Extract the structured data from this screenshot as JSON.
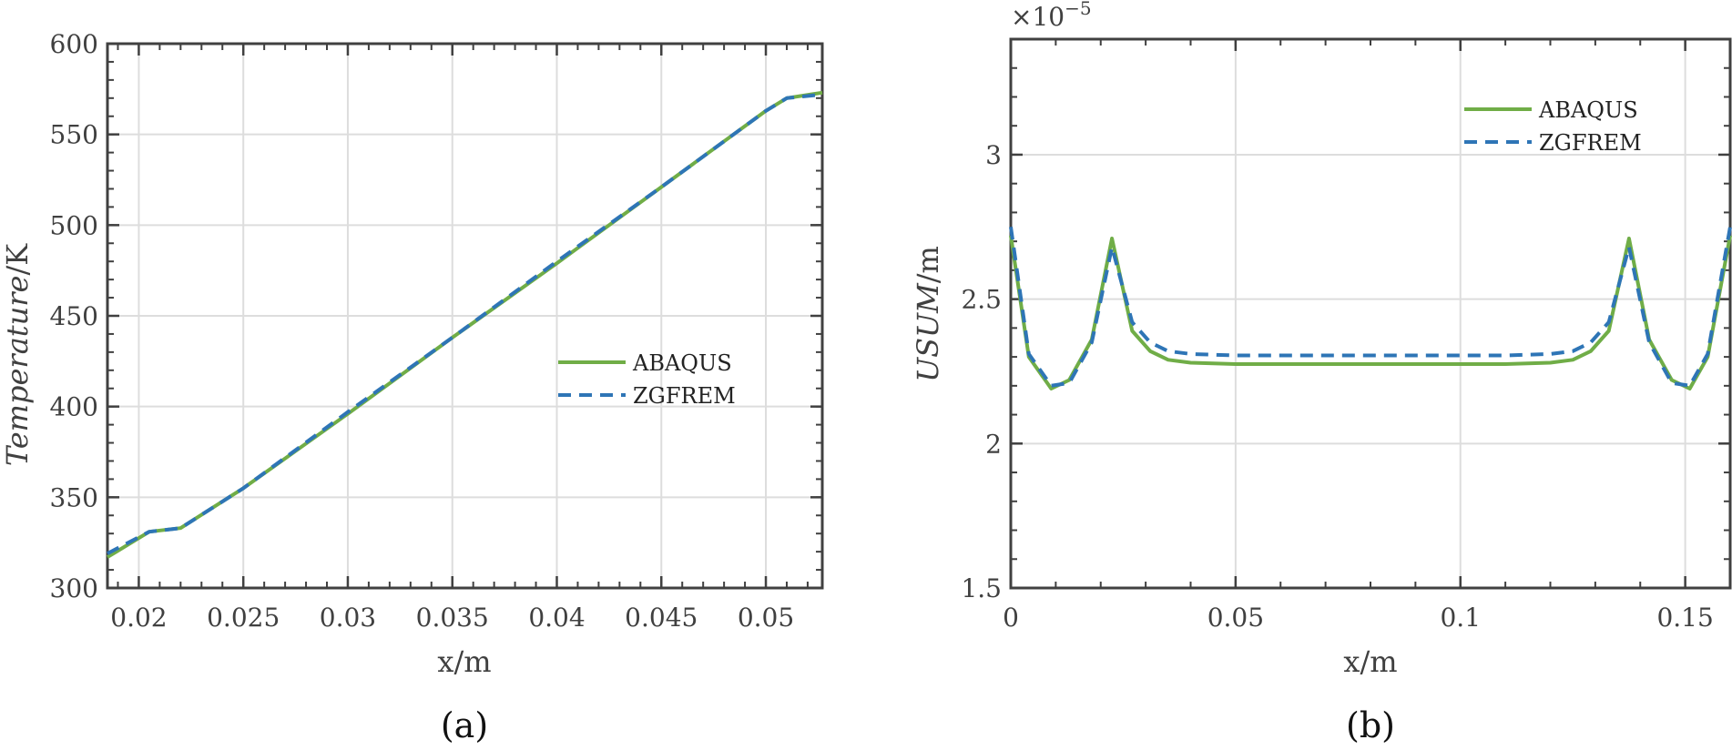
{
  "chart_data": [
    {
      "type": "line",
      "title": "",
      "caption": "(a)",
      "xlabel": "x/m",
      "ylabel_italic": "Temperature",
      "ylabel_unit": "/K",
      "xlim": [
        0.0185,
        0.0527
      ],
      "ylim": [
        300,
        600
      ],
      "xticks": [
        0.02,
        0.025,
        0.03,
        0.035,
        0.04,
        0.045,
        0.05
      ],
      "xtick_labels": [
        "0.02",
        "0.025",
        "0.03",
        "0.035",
        "0.04",
        "0.045",
        "0.05"
      ],
      "yticks": [
        300,
        350,
        400,
        450,
        500,
        550,
        600
      ],
      "ytick_labels": [
        "300",
        "350",
        "400",
        "450",
        "500",
        "550",
        "600"
      ],
      "grid": true,
      "legend_position": "right",
      "series": [
        {
          "name": "ABAQUS",
          "color": "#70AD47",
          "dash": "solid",
          "x": [
            0.0185,
            0.0205,
            0.022,
            0.025,
            0.03,
            0.035,
            0.04,
            0.045,
            0.05,
            0.051,
            0.0527
          ],
          "y": [
            317,
            331,
            333,
            355,
            396,
            438,
            479,
            521,
            563,
            570,
            573
          ]
        },
        {
          "name": "ZGFREM",
          "color": "#2E75B6",
          "dash": "dashed",
          "x": [
            0.0185,
            0.0205,
            0.022,
            0.025,
            0.03,
            0.035,
            0.04,
            0.045,
            0.05,
            0.051,
            0.0527
          ],
          "y": [
            319,
            331,
            333,
            355,
            397,
            438,
            480,
            521,
            563,
            570,
            572
          ]
        }
      ]
    },
    {
      "type": "line",
      "title": "",
      "caption": "(b)",
      "xlabel": "x/m",
      "ylabel_italic": "USUM",
      "ylabel_unit": "/m",
      "exponent_label": "×10",
      "exponent_power": "−5",
      "xlim": [
        0,
        0.16
      ],
      "ylim": [
        1.5,
        3.4
      ],
      "xticks": [
        0,
        0.05,
        0.1,
        0.15
      ],
      "xtick_labels": [
        "0",
        "0.05",
        "0.1",
        "0.15"
      ],
      "yticks": [
        1.5,
        2,
        2.5,
        3
      ],
      "ytick_labels": [
        "1.5",
        "2",
        "2.5",
        "3"
      ],
      "grid": true,
      "legend_position": "top-right",
      "series": [
        {
          "name": "ABAQUS",
          "color": "#70AD47",
          "dash": "solid",
          "x": [
            0,
            0.004,
            0.009,
            0.013,
            0.018,
            0.0225,
            0.027,
            0.031,
            0.035,
            0.04,
            0.05,
            0.08,
            0.11,
            0.12,
            0.125,
            0.129,
            0.133,
            0.1375,
            0.142,
            0.147,
            0.151,
            0.155,
            0.16
          ],
          "y": [
            2.72,
            2.3,
            2.19,
            2.22,
            2.36,
            2.71,
            2.39,
            2.32,
            2.29,
            2.28,
            2.275,
            2.275,
            2.275,
            2.28,
            2.29,
            2.32,
            2.39,
            2.71,
            2.36,
            2.22,
            2.19,
            2.3,
            2.72
          ]
        },
        {
          "name": "ZGFREM",
          "color": "#2E75B6",
          "dash": "dashed",
          "x": [
            0,
            0.004,
            0.009,
            0.013,
            0.018,
            0.0225,
            0.027,
            0.031,
            0.035,
            0.04,
            0.05,
            0.08,
            0.11,
            0.12,
            0.125,
            0.129,
            0.133,
            0.1375,
            0.142,
            0.147,
            0.151,
            0.155,
            0.16
          ],
          "y": [
            2.75,
            2.31,
            2.2,
            2.21,
            2.35,
            2.68,
            2.42,
            2.35,
            2.32,
            2.31,
            2.305,
            2.305,
            2.305,
            2.31,
            2.32,
            2.35,
            2.42,
            2.68,
            2.35,
            2.21,
            2.2,
            2.31,
            2.75
          ]
        }
      ]
    }
  ]
}
